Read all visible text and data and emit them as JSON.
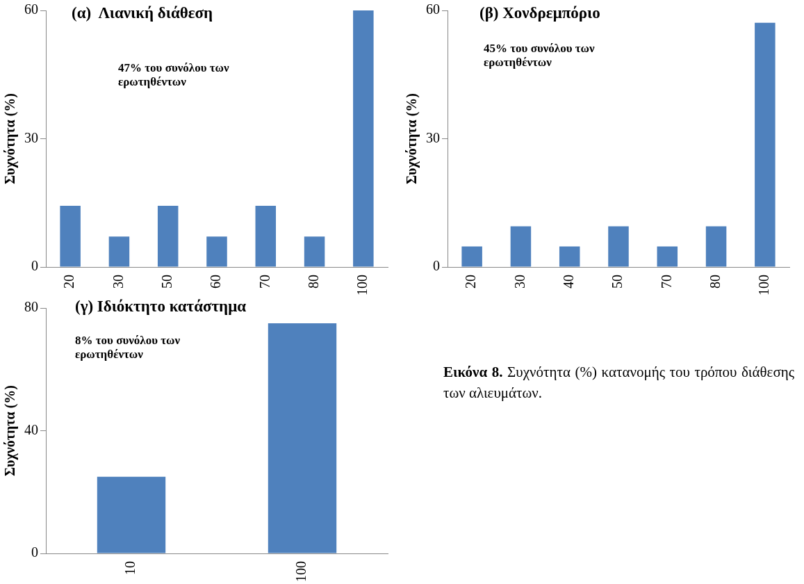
{
  "chart_data": [
    {
      "type": "bar",
      "title": "(α)  Λιανική διάθεση",
      "ylabel": "Συχνότητα (%)",
      "categories": [
        "20",
        "30",
        "50",
        "60",
        "70",
        "80",
        "100"
      ],
      "values": [
        14.3,
        7.1,
        14.3,
        7.1,
        14.3,
        7.1,
        60
      ],
      "color": "#4f81bd",
      "ylim": [
        0,
        60
      ],
      "yticks": [
        0,
        30,
        60
      ],
      "grid": false,
      "annotations": [
        "47% του συνόλου των ερωτηθέντων"
      ]
    },
    {
      "type": "bar",
      "title": "(β) Χονδρεμπόριο",
      "ylabel": "Συχνότητα (%)",
      "categories": [
        "20",
        "30",
        "40",
        "50",
        "70",
        "80",
        "100"
      ],
      "values": [
        4.8,
        9.5,
        4.8,
        9.5,
        4.8,
        9.5,
        57.1
      ],
      "color": "#4f81bd",
      "ylim": [
        0,
        60
      ],
      "yticks": [
        0,
        30,
        60
      ],
      "grid": false,
      "annotations": [
        "45% του συνόλου των ερωτηθέντων"
      ]
    },
    {
      "type": "bar",
      "title": "(γ) Ιδιόκτητο κατάστημα",
      "ylabel": "Συχνότητα (%)",
      "categories": [
        "10",
        "100"
      ],
      "values": [
        25,
        75
      ],
      "color": "#4f81bd",
      "ylim": [
        0,
        80
      ],
      "yticks": [
        0,
        40,
        80
      ],
      "grid": false,
      "annotations": [
        "8% του συνόλου των ερωτηθέντων"
      ]
    },
    {
      "type": "other",
      "annotations": [
        "Εικόνα 8.",
        "Συχνότητα (%) κατανομής του τρόπου διάθεσης των αλιευμάτων."
      ]
    }
  ]
}
